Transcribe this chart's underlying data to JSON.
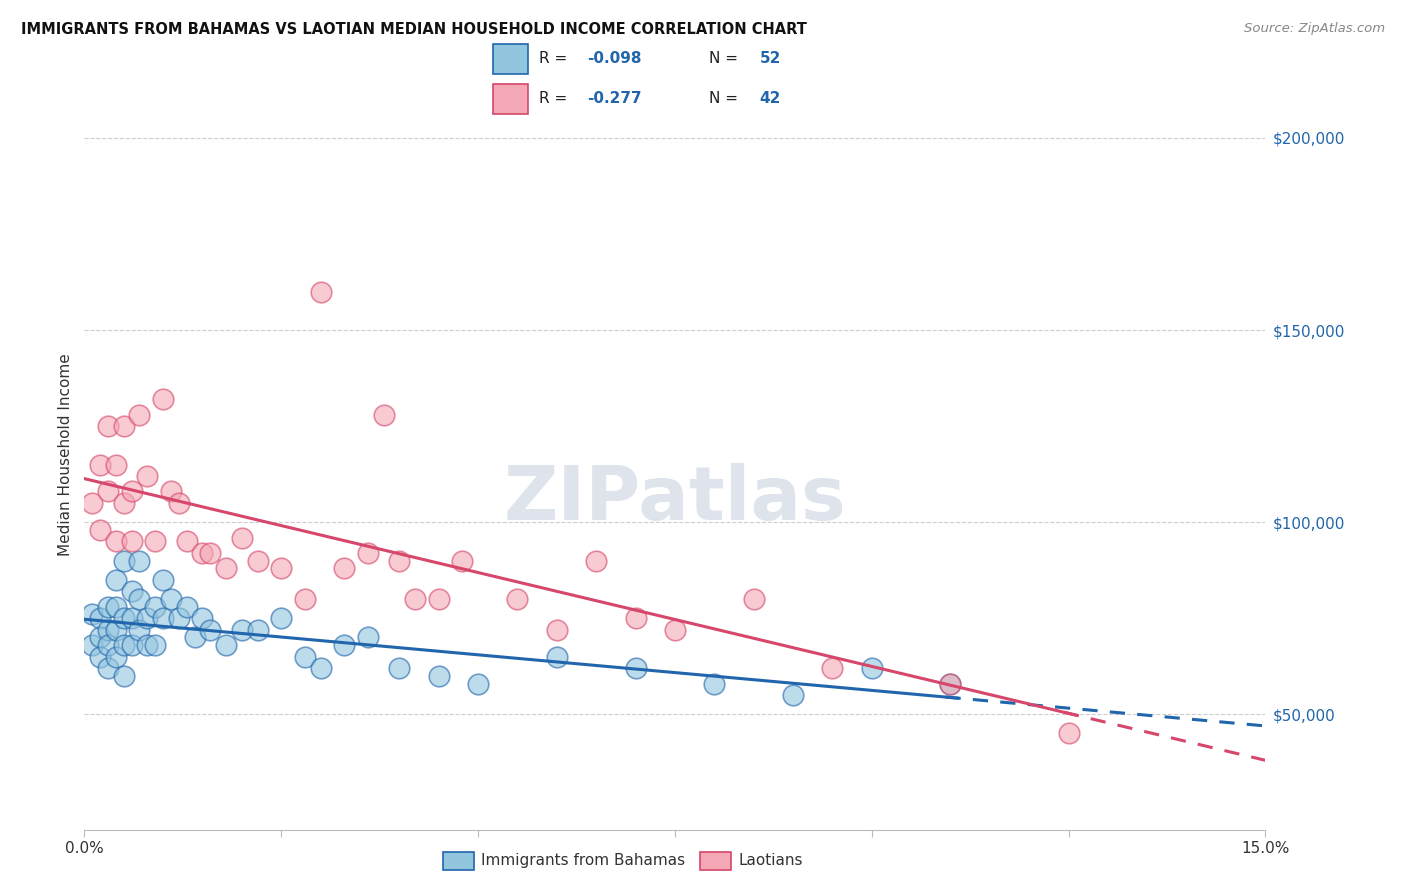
{
  "title": "IMMIGRANTS FROM BAHAMAS VS LAOTIAN MEDIAN HOUSEHOLD INCOME CORRELATION CHART",
  "source": "Source: ZipAtlas.com",
  "ylabel": "Median Household Income",
  "yticks": [
    50000,
    100000,
    150000,
    200000
  ],
  "ytick_labels": [
    "$50,000",
    "$100,000",
    "$150,000",
    "$200,000"
  ],
  "xlim": [
    0.0,
    0.15
  ],
  "ylim": [
    20000,
    215000
  ],
  "legend_label1": "Immigrants from Bahamas",
  "legend_label2": "Laotians",
  "color_blue": "#92c5de",
  "color_pink": "#f4a7b4",
  "trendline_blue": "#2166ac",
  "trendline_pink": "#d6476b",
  "watermark": "ZIPatlas",
  "bahamas_x": [
    0.001,
    0.001,
    0.002,
    0.002,
    0.002,
    0.003,
    0.003,
    0.003,
    0.003,
    0.004,
    0.004,
    0.004,
    0.004,
    0.005,
    0.005,
    0.005,
    0.005,
    0.006,
    0.006,
    0.006,
    0.007,
    0.007,
    0.007,
    0.008,
    0.008,
    0.009,
    0.009,
    0.01,
    0.01,
    0.011,
    0.012,
    0.013,
    0.014,
    0.015,
    0.016,
    0.018,
    0.02,
    0.022,
    0.025,
    0.028,
    0.03,
    0.033,
    0.036,
    0.04,
    0.045,
    0.05,
    0.06,
    0.07,
    0.08,
    0.09,
    0.1,
    0.11
  ],
  "bahamas_y": [
    76000,
    68000,
    75000,
    70000,
    65000,
    78000,
    72000,
    68000,
    62000,
    85000,
    78000,
    72000,
    65000,
    90000,
    75000,
    68000,
    60000,
    82000,
    75000,
    68000,
    90000,
    80000,
    72000,
    75000,
    68000,
    78000,
    68000,
    85000,
    75000,
    80000,
    75000,
    78000,
    70000,
    75000,
    72000,
    68000,
    72000,
    72000,
    75000,
    65000,
    62000,
    68000,
    70000,
    62000,
    60000,
    58000,
    65000,
    62000,
    58000,
    55000,
    62000,
    58000
  ],
  "laotian_x": [
    0.001,
    0.002,
    0.002,
    0.003,
    0.003,
    0.004,
    0.004,
    0.005,
    0.005,
    0.006,
    0.006,
    0.007,
    0.008,
    0.009,
    0.01,
    0.011,
    0.012,
    0.013,
    0.015,
    0.016,
    0.018,
    0.02,
    0.022,
    0.025,
    0.028,
    0.03,
    0.033,
    0.036,
    0.038,
    0.04,
    0.042,
    0.045,
    0.048,
    0.055,
    0.06,
    0.065,
    0.07,
    0.075,
    0.085,
    0.095,
    0.11,
    0.125
  ],
  "laotian_y": [
    105000,
    115000,
    98000,
    125000,
    108000,
    115000,
    95000,
    125000,
    105000,
    108000,
    95000,
    128000,
    112000,
    95000,
    132000,
    108000,
    105000,
    95000,
    92000,
    92000,
    88000,
    96000,
    90000,
    88000,
    80000,
    160000,
    88000,
    92000,
    128000,
    90000,
    80000,
    80000,
    90000,
    80000,
    72000,
    90000,
    75000,
    72000,
    80000,
    62000,
    58000,
    45000
  ]
}
